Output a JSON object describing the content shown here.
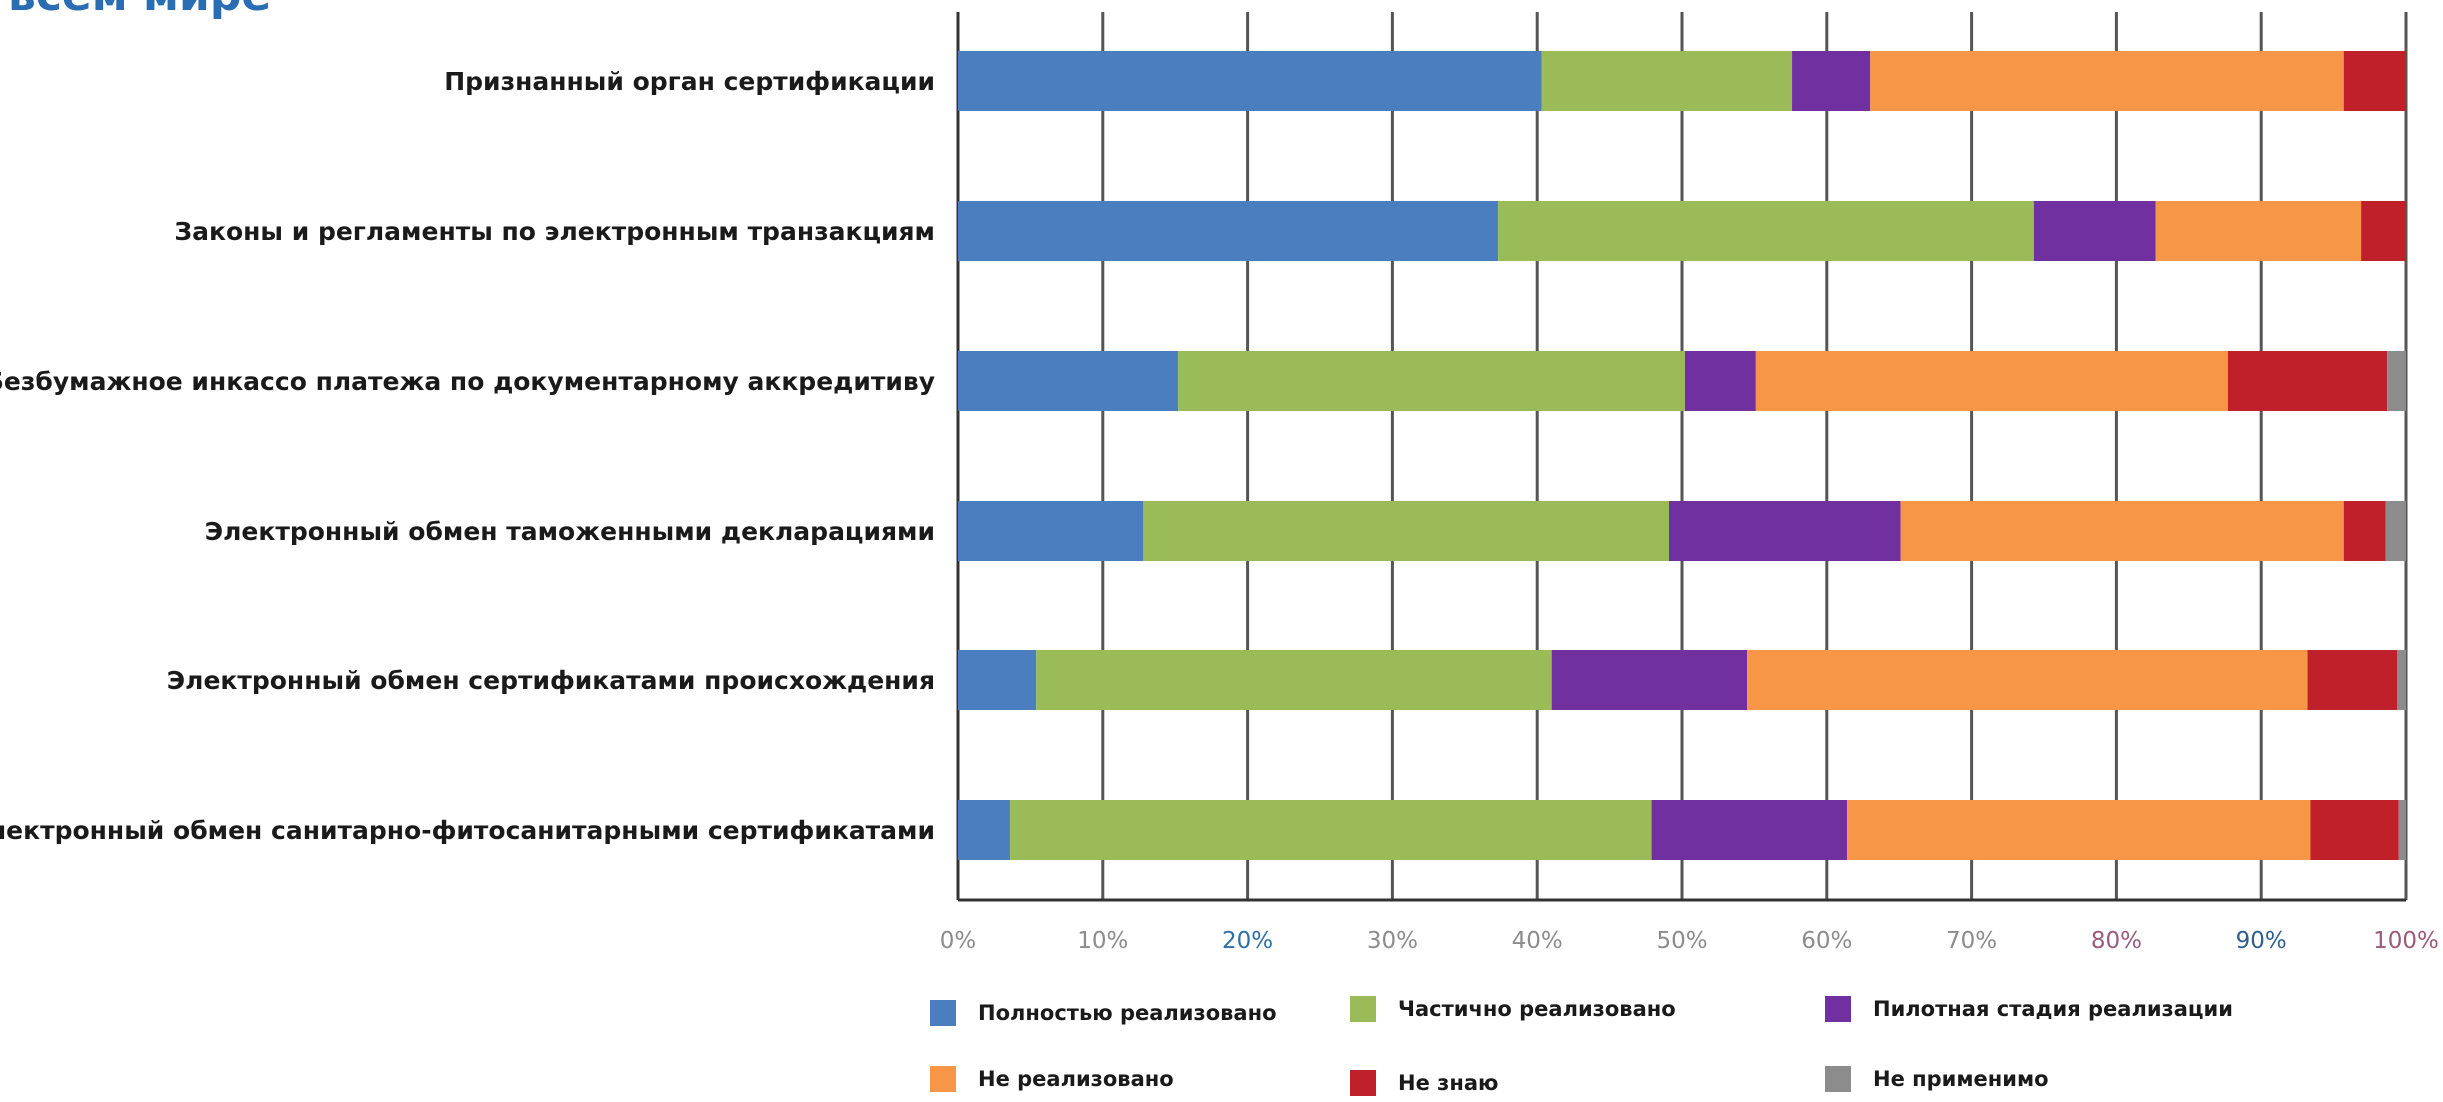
{
  "page": {
    "title": "всем мире"
  },
  "colors": {
    "fully": "#4a7ebf",
    "partial": "#9bbb59",
    "pilot": "#7030a0",
    "not": "#f79646",
    "dontknow": "#c0202a",
    "na": "#8c8c8c",
    "grid": "#555555",
    "axis": "#333333"
  },
  "chart_data": {
    "type": "bar",
    "orientation": "horizontal",
    "stacked": true,
    "title": "",
    "xlabel": "",
    "ylabel": "",
    "xlim": [
      0,
      100
    ],
    "grid": true,
    "legend_position": "bottom",
    "categories": [
      "Признанный орган сертификации",
      "Законы и регламенты по электронным транзакциям",
      "Безбумажное инкассо платежа по документарному аккредитиву",
      "Электронный обмен таможенными декларациями",
      "Электронный обмен сертификатами происхождения",
      "Электронный обмен санитарно-фитосанитарными сертификатами"
    ],
    "x_ticks": [
      "0%",
      "10%",
      "20%",
      "30%",
      "40%",
      "50%",
      "60%",
      "70%",
      "80%",
      "90%",
      "100%"
    ],
    "x_tick_colors": [
      "#8c8c8c",
      "#8c8c8c",
      "#2e6fa8",
      "#8c8c8c",
      "#8c8c8c",
      "#8c8c8c",
      "#8c8c8c",
      "#8c8c8c",
      "#9b5a7a",
      "#2e5f8f",
      "#9b5a7a"
    ],
    "series": [
      {
        "name": "Полностью реализовано",
        "color_key": "fully",
        "values": [
          40.3,
          37.3,
          15.2,
          12.8,
          5.4,
          3.6
        ]
      },
      {
        "name": "Частично реализовано",
        "color_key": "partial",
        "values": [
          17.3,
          37.0,
          35.0,
          36.3,
          35.6,
          44.3
        ]
      },
      {
        "name": "Пилотная стадия реализации",
        "color_key": "pilot",
        "values": [
          5.4,
          8.4,
          4.9,
          16.0,
          13.5,
          13.5
        ]
      },
      {
        "name": "Не реализовано",
        "color_key": "not",
        "values": [
          32.7,
          14.2,
          32.6,
          30.6,
          38.7,
          32.0
        ]
      },
      {
        "name": "Не знаю",
        "color_key": "dontknow",
        "values": [
          4.3,
          3.1,
          11.0,
          2.9,
          6.2,
          6.1
        ]
      },
      {
        "name": "Не применимо",
        "color_key": "na",
        "values": [
          0.0,
          0.0,
          1.3,
          1.4,
          0.6,
          0.5
        ]
      }
    ]
  }
}
